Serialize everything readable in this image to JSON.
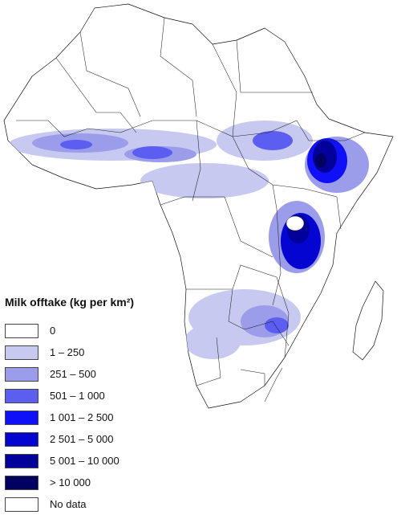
{
  "legend": {
    "title": "Milk offtake (kg per km²)",
    "classes": [
      {
        "label": "0",
        "color": "#ffffff"
      },
      {
        "label": "1 – 250",
        "color": "#c8c9f1"
      },
      {
        "label": "251 – 500",
        "color": "#9b9deb"
      },
      {
        "label": "501 – 1 000",
        "color": "#5b5ef0"
      },
      {
        "label": "1 001 – 2 500",
        "color": "#1010f8"
      },
      {
        "label": "2 501 – 5 000",
        "color": "#0505d2"
      },
      {
        "label": "5 001 – 10 000",
        "color": "#02029a"
      },
      {
        "label": "> 10 000",
        "color": "#010162"
      },
      {
        "label": "No data",
        "color": "#ffffff"
      }
    ]
  }
}
